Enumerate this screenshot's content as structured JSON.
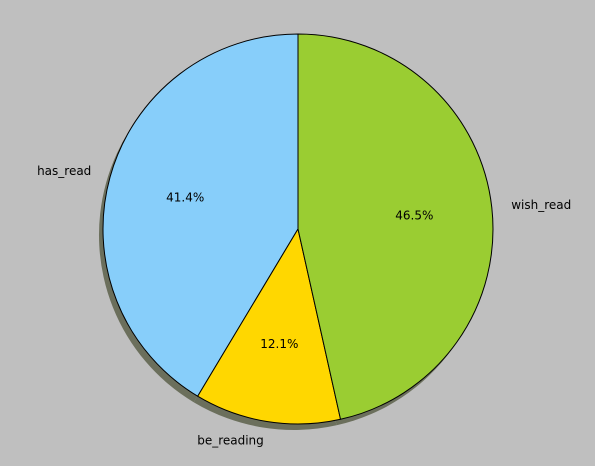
{
  "chart_data": {
    "type": "pie",
    "title": "",
    "categories": [
      "has_read",
      "be_reading",
      "wish_read"
    ],
    "values": [
      41.4,
      12.1,
      46.5
    ],
    "percent_labels": [
      "41.4%",
      "12.1%",
      "46.5%"
    ],
    "colors": [
      "#87cefa",
      "#ffd700",
      "#9acd32"
    ],
    "start_angle": "90 degrees (12 o'clock), counterclockwise",
    "shadow": true,
    "legend": "none",
    "background": "#bfbfbf"
  }
}
